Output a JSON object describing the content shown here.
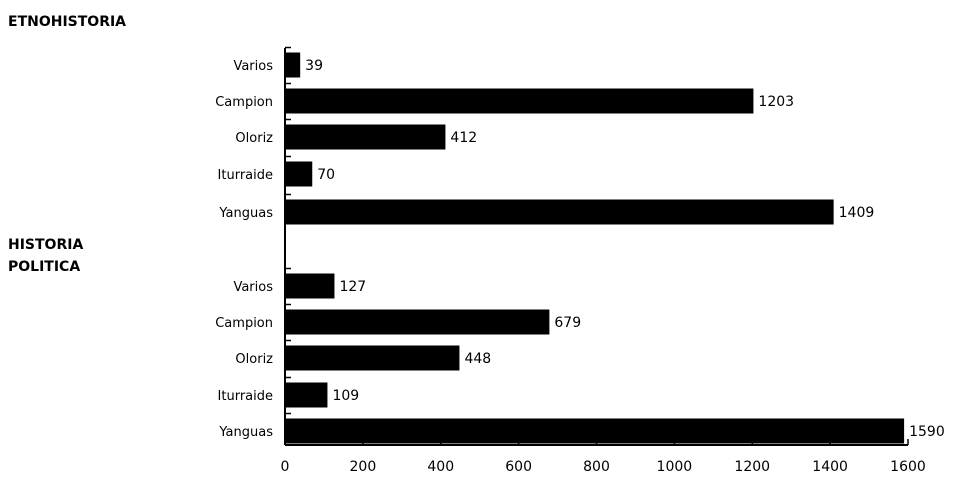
{
  "chart_data": {
    "type": "bar",
    "orientation": "horizontal",
    "groups": [
      {
        "name": "ETNOHISTORIA",
        "categories": [
          "Varios",
          "Campion",
          "Oloriz",
          "Iturraide",
          "Yanguas"
        ],
        "values": [
          39,
          1203,
          412,
          70,
          1409
        ]
      },
      {
        "name": "HISTORIA\nPOLITICA",
        "categories": [
          "Varios",
          "Campion",
          "Oloriz",
          "Iturraide",
          "Yanguas"
        ],
        "values": [
          127,
          679,
          448,
          109,
          1590
        ]
      }
    ],
    "x_ticks": [
      0,
      200,
      400,
      600,
      800,
      1000,
      1200,
      1400,
      1600
    ],
    "xlim": [
      0,
      1600
    ],
    "bar_color": "#000000",
    "grid": false,
    "legend": "none"
  }
}
